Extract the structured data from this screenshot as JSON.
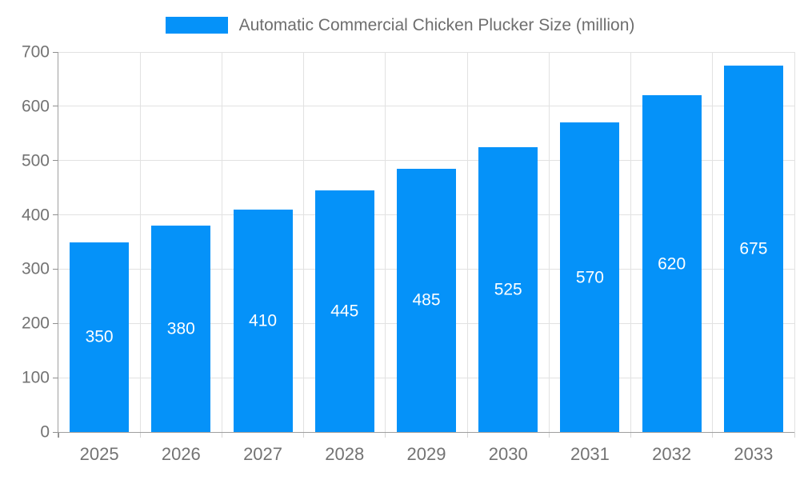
{
  "chart_data": {
    "type": "bar",
    "title": "Automatic Commercial Chicken Plucker Size (million)",
    "categories": [
      "2025",
      "2026",
      "2027",
      "2028",
      "2029",
      "2030",
      "2031",
      "2032",
      "2033"
    ],
    "values": [
      350,
      380,
      410,
      445,
      485,
      525,
      570,
      620,
      675
    ],
    "yticks": [
      0,
      100,
      200,
      300,
      400,
      500,
      600,
      700
    ],
    "ylim": [
      0,
      700
    ],
    "xlabel": "",
    "ylabel": "",
    "grid": "on",
    "legend_position": "top-center",
    "show_value_labels": true,
    "value_label_position": "center-inside"
  },
  "colors": {
    "bar": "#0592f9",
    "value_label": "#ffffff",
    "axis_label": "#737373",
    "legend_text": "#6e6e6e",
    "gridline": "#e2e2e2",
    "axis_line": "#9e9e9e",
    "tick_y": "#8f8f8f",
    "tick_x": "#d6d6d6",
    "background": "#ffffff"
  }
}
